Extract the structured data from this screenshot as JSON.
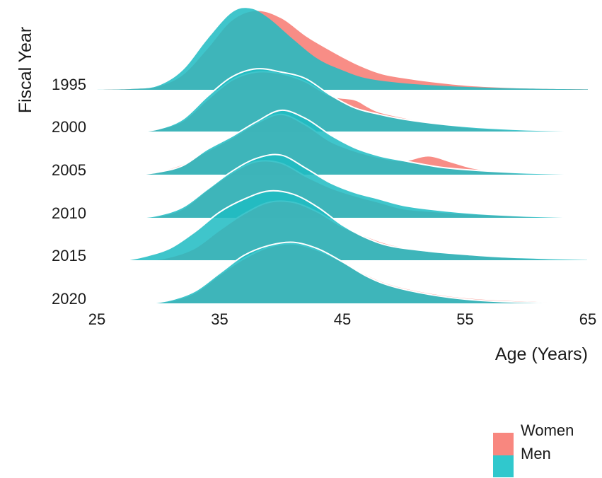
{
  "chart_data": {
    "type": "ridgeline",
    "xlabel": "Age (Years)",
    "ylabel": "Fiscal Year",
    "xlim": [
      25,
      65
    ],
    "x_ticks": [
      25,
      35,
      45,
      55,
      65
    ],
    "categories": [
      "1995",
      "2000",
      "2005",
      "2010",
      "2015",
      "2020"
    ],
    "colors": {
      "Women": "#f8877f",
      "Men": "#1fbcc2"
    },
    "series": [
      {
        "name": "Women",
        "densities": [
          {
            "year": "1995",
            "points": [
              [
                25.5,
                0
              ],
              [
                28,
                0.01
              ],
              [
                30,
                0.04
              ],
              [
                32,
                0.18
              ],
              [
                34,
                0.5
              ],
              [
                36,
                0.85
              ],
              [
                38,
                0.97
              ],
              [
                40,
                0.88
              ],
              [
                42,
                0.66
              ],
              [
                44,
                0.48
              ],
              [
                46,
                0.32
              ],
              [
                48,
                0.2
              ],
              [
                50,
                0.14
              ],
              [
                53,
                0.08
              ],
              [
                56,
                0.04
              ],
              [
                60,
                0.015
              ],
              [
                65,
                0.005
              ]
            ]
          },
          {
            "year": "2000",
            "points": [
              [
                28,
                0
              ],
              [
                30,
                0.04
              ],
              [
                32,
                0.14
              ],
              [
                34,
                0.4
              ],
              [
                36,
                0.64
              ],
              [
                38,
                0.74
              ],
              [
                40,
                0.72
              ],
              [
                42,
                0.62
              ],
              [
                44,
                0.45
              ],
              [
                46,
                0.4
              ],
              [
                47,
                0.32
              ],
              [
                48,
                0.25
              ],
              [
                50,
                0.18
              ],
              [
                53,
                0.1
              ],
              [
                56,
                0.05
              ],
              [
                60,
                0.02
              ],
              [
                65,
                0.005
              ]
            ]
          },
          {
            "year": "2005",
            "points": [
              [
                28,
                0
              ],
              [
                30,
                0.05
              ],
              [
                32,
                0.14
              ],
              [
                34,
                0.3
              ],
              [
                36,
                0.46
              ],
              [
                38,
                0.64
              ],
              [
                40,
                0.75
              ],
              [
                42,
                0.62
              ],
              [
                44,
                0.42
              ],
              [
                46,
                0.3
              ],
              [
                48,
                0.22
              ],
              [
                50,
                0.18
              ],
              [
                52,
                0.24
              ],
              [
                54,
                0.16
              ],
              [
                56,
                0.08
              ],
              [
                60,
                0.02
              ],
              [
                65,
                0.005
              ]
            ]
          },
          {
            "year": "2010",
            "points": [
              [
                28,
                0
              ],
              [
                30,
                0.03
              ],
              [
                32,
                0.12
              ],
              [
                34,
                0.35
              ],
              [
                36,
                0.56
              ],
              [
                38,
                0.7
              ],
              [
                40,
                0.68
              ],
              [
                42,
                0.52
              ],
              [
                44,
                0.38
              ],
              [
                46,
                0.28
              ],
              [
                48,
                0.2
              ],
              [
                50,
                0.12
              ],
              [
                53,
                0.08
              ],
              [
                55,
                0.06
              ],
              [
                58,
                0.04
              ],
              [
                62,
                0.01
              ],
              [
                65,
                0.003
              ]
            ]
          },
          {
            "year": "2015",
            "points": [
              [
                29,
                0
              ],
              [
                31,
                0.05
              ],
              [
                33,
                0.16
              ],
              [
                35,
                0.38
              ],
              [
                37,
                0.58
              ],
              [
                39,
                0.72
              ],
              [
                41,
                0.72
              ],
              [
                43,
                0.6
              ],
              [
                45,
                0.42
              ],
              [
                47,
                0.3
              ],
              [
                49,
                0.2
              ],
              [
                52,
                0.12
              ],
              [
                55,
                0.08
              ],
              [
                58,
                0.05
              ],
              [
                62,
                0.02
              ],
              [
                65,
                0.008
              ]
            ]
          },
          {
            "year": "2020",
            "points": [
              [
                29,
                0
              ],
              [
                31,
                0.04
              ],
              [
                33,
                0.14
              ],
              [
                35,
                0.36
              ],
              [
                37,
                0.56
              ],
              [
                39,
                0.7
              ],
              [
                41,
                0.74
              ],
              [
                43,
                0.66
              ],
              [
                45,
                0.52
              ],
              [
                47,
                0.36
              ],
              [
                49,
                0.24
              ],
              [
                52,
                0.14
              ],
              [
                55,
                0.08
              ],
              [
                58,
                0.05
              ],
              [
                62,
                0.03
              ],
              [
                65,
                0.02
              ]
            ]
          }
        ]
      },
      {
        "name": "Men",
        "densities": [
          {
            "year": "1995",
            "points": [
              [
                25,
                0
              ],
              [
                28,
                0.01
              ],
              [
                30,
                0.05
              ],
              [
                32,
                0.24
              ],
              [
                34,
                0.62
              ],
              [
                36,
                0.95
              ],
              [
                37.5,
                1.0
              ],
              [
                39,
                0.88
              ],
              [
                41,
                0.62
              ],
              [
                43,
                0.38
              ],
              [
                45,
                0.24
              ],
              [
                47,
                0.14
              ],
              [
                50,
                0.08
              ],
              [
                53,
                0.05
              ],
              [
                56,
                0.03
              ],
              [
                60,
                0.015
              ],
              [
                65,
                0.005
              ]
            ]
          },
          {
            "year": "2000",
            "points": [
              [
                28,
                0
              ],
              [
                30,
                0.04
              ],
              [
                32,
                0.16
              ],
              [
                34,
                0.44
              ],
              [
                36,
                0.68
              ],
              [
                38,
                0.78
              ],
              [
                40,
                0.74
              ],
              [
                42,
                0.66
              ],
              [
                44,
                0.46
              ],
              [
                46,
                0.3
              ],
              [
                48,
                0.22
              ],
              [
                50,
                0.16
              ],
              [
                53,
                0.1
              ],
              [
                56,
                0.06
              ],
              [
                60,
                0.03
              ],
              [
                65,
                0.01
              ]
            ]
          },
          {
            "year": "2005",
            "points": [
              [
                28,
                0
              ],
              [
                30,
                0.04
              ],
              [
                32,
                0.12
              ],
              [
                34,
                0.32
              ],
              [
                36,
                0.48
              ],
              [
                38,
                0.66
              ],
              [
                40,
                0.8
              ],
              [
                42,
                0.7
              ],
              [
                44,
                0.5
              ],
              [
                46,
                0.34
              ],
              [
                48,
                0.24
              ],
              [
                50,
                0.18
              ],
              [
                53,
                0.1
              ],
              [
                56,
                0.06
              ],
              [
                60,
                0.03
              ],
              [
                65,
                0.01
              ]
            ]
          },
          {
            "year": "2010",
            "points": [
              [
                28,
                0
              ],
              [
                30,
                0.04
              ],
              [
                32,
                0.14
              ],
              [
                34,
                0.36
              ],
              [
                36,
                0.58
              ],
              [
                38,
                0.74
              ],
              [
                40,
                0.78
              ],
              [
                42,
                0.62
              ],
              [
                44,
                0.44
              ],
              [
                46,
                0.32
              ],
              [
                48,
                0.24
              ],
              [
                50,
                0.16
              ],
              [
                53,
                0.1
              ],
              [
                56,
                0.06
              ],
              [
                60,
                0.03
              ],
              [
                65,
                0.01
              ]
            ]
          },
          {
            "year": "2015",
            "points": [
              [
                27,
                0
              ],
              [
                29,
                0.06
              ],
              [
                31,
                0.16
              ],
              [
                33,
                0.36
              ],
              [
                35,
                0.6
              ],
              [
                37,
                0.76
              ],
              [
                39,
                0.86
              ],
              [
                41,
                0.82
              ],
              [
                43,
                0.66
              ],
              [
                45,
                0.44
              ],
              [
                47,
                0.28
              ],
              [
                49,
                0.18
              ],
              [
                52,
                0.12
              ],
              [
                55,
                0.08
              ],
              [
                58,
                0.05
              ],
              [
                62,
                0.03
              ],
              [
                65,
                0.02
              ]
            ]
          },
          {
            "year": "2020",
            "points": [
              [
                29,
                0
              ],
              [
                31,
                0.05
              ],
              [
                33,
                0.16
              ],
              [
                35,
                0.38
              ],
              [
                37,
                0.6
              ],
              [
                39,
                0.72
              ],
              [
                41,
                0.76
              ],
              [
                43,
                0.68
              ],
              [
                45,
                0.52
              ],
              [
                47,
                0.34
              ],
              [
                49,
                0.22
              ],
              [
                52,
                0.12
              ],
              [
                55,
                0.06
              ],
              [
                58,
                0.03
              ],
              [
                62,
                0.015
              ],
              [
                65,
                0.005
              ]
            ]
          }
        ]
      }
    ],
    "legend": {
      "position": "bottom-right",
      "entries": [
        "Women",
        "Men"
      ]
    }
  }
}
